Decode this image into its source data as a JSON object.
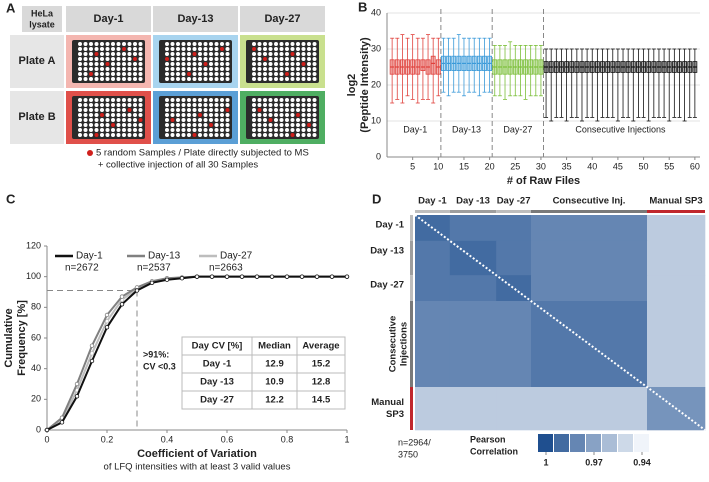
{
  "plate_diagram": {
    "label": "A",
    "corner": [
      "HeLa",
      "lysate"
    ],
    "columns": [
      "Day-1",
      "Day-13",
      "Day-27"
    ],
    "rows": [
      "Plate A",
      "Plate B"
    ],
    "legend": [
      "5 random Samples / Plate directly subjected to MS",
      "+ collective injection of all 30 Samples"
    ]
  },
  "chart_data": [
    {
      "type": "box",
      "label": "B",
      "ylabel": [
        "log2",
        "(Peptide Intensity)"
      ],
      "xlabel": "# of Raw Files",
      "xlim": [
        0,
        61
      ],
      "ylim": [
        0,
        40
      ],
      "xticks": [
        5,
        10,
        15,
        20,
        25,
        30,
        35,
        40,
        45,
        50,
        55,
        60
      ],
      "yticks": [
        0,
        10,
        20,
        30,
        40
      ],
      "grid": true,
      "separators": [
        10.5,
        20.5,
        30.5
      ],
      "series": [
        {
          "name": "Day-1",
          "color": "#e0413c",
          "x": [
            1,
            2,
            3,
            4,
            5,
            6,
            7,
            8,
            9,
            10
          ],
          "low": [
            15,
            16,
            15,
            17,
            16,
            15,
            16,
            16,
            15,
            17
          ],
          "q1": [
            23,
            23,
            23,
            23,
            23,
            23,
            24,
            23,
            23,
            23
          ],
          "median": [
            25,
            25,
            25,
            25,
            25,
            25,
            25,
            25,
            26,
            25
          ],
          "q3": [
            27,
            27,
            27,
            27,
            27,
            27,
            27,
            27,
            28,
            27
          ],
          "high": [
            33,
            33,
            34,
            33,
            34,
            33,
            33,
            34,
            33,
            33
          ]
        },
        {
          "name": "Day-13",
          "color": "#3a9ad9",
          "x": [
            11,
            12,
            13,
            14,
            15,
            16,
            17,
            18,
            19,
            20
          ],
          "low": [
            18,
            17,
            18,
            18,
            17,
            18,
            18,
            17,
            18,
            18
          ],
          "q1": [
            24,
            24,
            24,
            24,
            24,
            24,
            24,
            24,
            24,
            24
          ],
          "median": [
            26,
            26,
            26,
            26,
            26,
            26,
            26,
            26,
            26,
            26
          ],
          "q3": [
            28,
            28,
            28,
            28,
            28,
            28,
            28,
            28,
            28,
            28
          ],
          "high": [
            33,
            33,
            33,
            34,
            33,
            33,
            33,
            33,
            33,
            33
          ]
        },
        {
          "name": "Day-27",
          "color": "#7cbf3a",
          "x": [
            21,
            22,
            23,
            24,
            25,
            26,
            27,
            28,
            29,
            30
          ],
          "low": [
            17,
            17,
            16,
            17,
            17,
            17,
            16,
            17,
            17,
            17
          ],
          "q1": [
            23,
            23,
            23,
            23,
            23,
            23,
            23,
            23,
            23,
            23
          ],
          "median": [
            25,
            25,
            25,
            25,
            25,
            25,
            25,
            25,
            25,
            25
          ],
          "q3": [
            27,
            27,
            27,
            27,
            27,
            27,
            27,
            27,
            27,
            27
          ],
          "high": [
            31,
            31,
            31,
            32,
            31,
            31,
            31,
            31,
            31,
            31
          ]
        },
        {
          "name": "Consecutive Injections",
          "color": "#111111",
          "x": [
            31,
            32,
            33,
            34,
            35,
            36,
            37,
            38,
            39,
            40,
            41,
            42,
            43,
            44,
            45,
            46,
            47,
            48,
            49,
            50,
            51,
            52,
            53,
            54,
            55,
            56,
            57,
            58,
            59,
            60
          ],
          "low": [
            11,
            10,
            11,
            11,
            10,
            11,
            11,
            10,
            11,
            11,
            10,
            11,
            11,
            11,
            10,
            11,
            11,
            10,
            11,
            11,
            10,
            11,
            11,
            11,
            10,
            11,
            11,
            10,
            11,
            11
          ],
          "q1": [
            23.5,
            23.5,
            23.5,
            23.5,
            23.5,
            23.5,
            23.5,
            23.5,
            23.5,
            23.5,
            23.5,
            23.5,
            23.5,
            23.5,
            23.5,
            23.5,
            23.5,
            23.5,
            23.5,
            23.5,
            23.5,
            23.5,
            23.5,
            23.5,
            23.5,
            23.5,
            23.5,
            23.5,
            23.5,
            23.5
          ],
          "median": [
            25,
            25,
            25,
            25,
            25,
            25,
            25,
            25,
            25,
            25,
            25,
            25,
            25,
            25,
            25,
            25,
            25,
            25,
            25,
            25,
            25,
            25,
            25,
            25,
            25,
            25,
            25,
            25,
            25,
            25
          ],
          "q3": [
            26.5,
            26.5,
            26.5,
            26.5,
            26.5,
            26.5,
            26.5,
            26.5,
            26.5,
            26.5,
            26.5,
            26.5,
            26.5,
            26.5,
            26.5,
            26.5,
            26.5,
            26.5,
            26.5,
            26.5,
            26.5,
            26.5,
            26.5,
            26.5,
            26.5,
            26.5,
            26.5,
            26.5,
            26.5,
            26.5
          ],
          "high": [
            30,
            30,
            30,
            30,
            30,
            30,
            30,
            30,
            30,
            30,
            30,
            30,
            30,
            30,
            30,
            30,
            30,
            30,
            30,
            30,
            30,
            30,
            30,
            30,
            30,
            30,
            30,
            30,
            30,
            30
          ]
        }
      ]
    },
    {
      "type": "line",
      "label": "C",
      "ylabel": [
        "Cumulative",
        "Frequency [%]"
      ],
      "xlabel": "Coefficient of Variation",
      "subtitle": "of LFQ intensities with at least 3 valid values",
      "xlim": [
        0,
        1
      ],
      "ylim": [
        0,
        120
      ],
      "xticks": [
        0,
        0.2,
        0.4,
        0.6,
        0.8,
        1
      ],
      "yticks": [
        0,
        20,
        40,
        60,
        80,
        100,
        120
      ],
      "legend": "upper left",
      "x": [
        0,
        0.05,
        0.1,
        0.15,
        0.2,
        0.25,
        0.3,
        0.35,
        0.4,
        0.45,
        0.5,
        0.55,
        0.6,
        0.65,
        0.7,
        0.75,
        0.8,
        0.85,
        0.9,
        0.95,
        1
      ],
      "series": [
        {
          "name": "Day-1",
          "n": "n=2672",
          "color": "#111111",
          "values": [
            0,
            5,
            22,
            45,
            67,
            82,
            91,
            96,
            98,
            99,
            100,
            100,
            100,
            100,
            100,
            100,
            100,
            100,
            100,
            100,
            100
          ]
        },
        {
          "name": "Day-13",
          "n": "n=2537",
          "color": "#808080",
          "values": [
            0,
            8,
            30,
            55,
            75,
            87,
            93,
            97,
            99,
            99.5,
            100,
            100,
            100,
            100,
            100,
            100,
            100,
            100,
            100,
            100,
            100
          ]
        },
        {
          "name": "Day-27",
          "n": "n=2663",
          "color": "#bdbdbd",
          "values": [
            0,
            6,
            26,
            50,
            71,
            85,
            92,
            96.5,
            98.5,
            99.3,
            100,
            100,
            100,
            100,
            100,
            100,
            100,
            100,
            100,
            100,
            100
          ]
        }
      ],
      "hline": 91,
      "vline": 0.3,
      "annotations": [
        ">91%:",
        "CV <0.3"
      ],
      "table": {
        "header": [
          "Day CV [%]",
          "Median",
          "Average"
        ],
        "rows": [
          [
            "Day -1",
            12.9,
            15.2
          ],
          [
            "Day -13",
            10.9,
            12.8
          ],
          [
            "Day -27",
            12.2,
            14.5
          ]
        ]
      }
    },
    {
      "type": "heatmap",
      "label": "D",
      "col_labels": [
        "Day -1",
        "Day -13",
        "Day -27",
        "Consecutive Inj.",
        "Manual SP3"
      ],
      "row_labels": [
        "Day -1",
        "Day -13",
        "Day -27",
        [
          "Consecutive",
          "Injections"
        ],
        [
          "Manual",
          "SP3"
        ]
      ],
      "group_sizes": [
        9,
        12,
        9,
        30,
        15
      ],
      "matrix": [
        [
          0.99,
          0.985,
          0.985,
          0.98,
          0.955
        ],
        [
          0.985,
          0.99,
          0.985,
          0.98,
          0.955
        ],
        [
          0.985,
          0.985,
          0.99,
          0.98,
          0.955
        ],
        [
          0.98,
          0.98,
          0.98,
          0.985,
          0.955
        ],
        [
          0.955,
          0.955,
          0.955,
          0.955,
          0.975
        ]
      ],
      "clim": [
        0.94,
        1
      ],
      "cmap": [
        "#f0f4fa",
        "#1f4f8f"
      ],
      "colorbar": {
        "title": [
          "Pearson",
          "Correlation"
        ],
        "values": [
          1,
          0.99,
          0.98,
          0.97,
          0.96,
          0.95,
          0.94
        ],
        "ticks": [
          1,
          0.97,
          0.94
        ]
      },
      "note": [
        "n=2964/",
        "3750"
      ]
    }
  ]
}
